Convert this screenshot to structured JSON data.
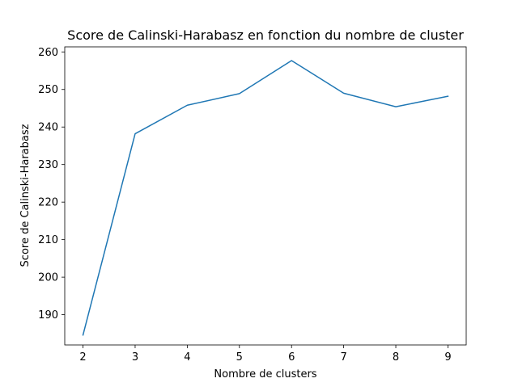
{
  "chart_data": {
    "type": "line",
    "title": "Score de Calinski-Harabasz en fonction du nombre de cluster",
    "xlabel": "Nombre de clusters",
    "ylabel": "Score de Calinski-Harabasz",
    "x": [
      2,
      3,
      4,
      5,
      6,
      7,
      8,
      9
    ],
    "series": [
      {
        "values": [
          184.6,
          238.2,
          245.8,
          248.9,
          257.7,
          249.0,
          245.4,
          248.2
        ]
      }
    ],
    "xticks": [
      "2",
      "3",
      "4",
      "5",
      "6",
      "7",
      "8",
      "9"
    ],
    "yticks": [
      "190",
      "200",
      "210",
      "220",
      "230",
      "240",
      "250",
      "260"
    ],
    "xlim": [
      1.65,
      9.35
    ],
    "ylim": [
      181.95,
      261.35
    ],
    "grid": false,
    "legend": false,
    "colors": {
      "line": "#1f77b4",
      "axis": "#000000",
      "background": "#ffffff"
    }
  }
}
